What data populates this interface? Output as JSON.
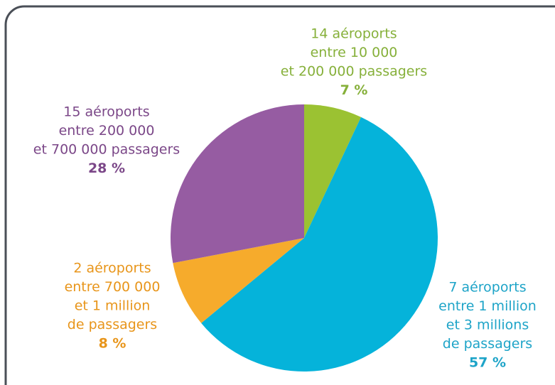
{
  "chart_data": {
    "type": "pie",
    "categories": [
      [
        "14 aéroports",
        "entre 10 000",
        "et 200 000 passagers"
      ],
      [
        "7 aéroports",
        "entre 1 million",
        "et 3 millions",
        "de passagers"
      ],
      [
        "2 aéroports",
        "entre 700 000",
        "et 1 million",
        "de passagers"
      ],
      [
        "15 aéroports",
        "entre 200 000",
        "et 700 000 passagers"
      ]
    ],
    "values": [
      7,
      57,
      8,
      28
    ],
    "value_labels": [
      "7 %",
      "57 %",
      "8 %",
      "28 %"
    ],
    "colors": [
      "#9bc232",
      "#05b3da",
      "#f6ab2c",
      "#965ca2"
    ],
    "label_colors": [
      "#86b03a",
      "#1ea4c8",
      "#e8951a",
      "#7b4788"
    ]
  }
}
